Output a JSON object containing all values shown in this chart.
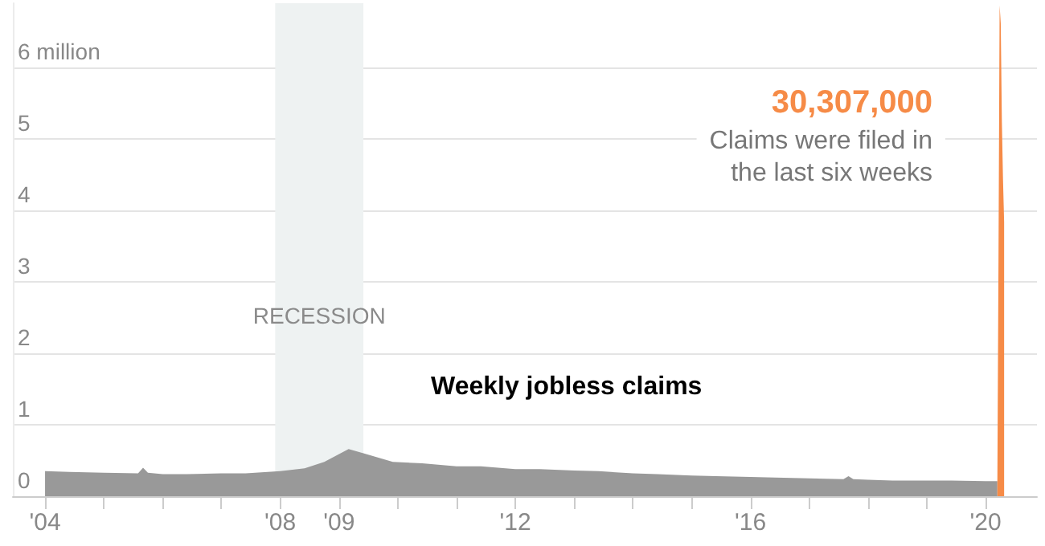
{
  "chart_data": {
    "type": "area",
    "annotations": [
      "30,307,000",
      "Claims were filed in\nthe last six weeks"
    ],
    "xlim": [
      "2003-06-15",
      "2020-11-15"
    ],
    "xticks": [
      {
        "value": "2004",
        "label": "'04"
      },
      {
        "value": "2005",
        "label": null
      },
      {
        "value": "2006",
        "label": null
      },
      {
        "value": "2007",
        "label": null
      },
      {
        "value": "2008",
        "label": "'08"
      },
      {
        "value": "2009",
        "label": "'09"
      },
      {
        "value": "2010",
        "label": null
      },
      {
        "value": "2011",
        "label": null
      },
      {
        "value": "2012",
        "label": "'12"
      },
      {
        "value": "2013",
        "label": null
      },
      {
        "value": "2014",
        "label": null
      },
      {
        "value": "2015",
        "label": null
      },
      {
        "value": "2016",
        "label": "'16"
      },
      {
        "value": "2017",
        "label": null
      },
      {
        "value": "2018",
        "label": null
      },
      {
        "value": "2019",
        "label": null
      },
      {
        "value": "2020",
        "label": "'20"
      }
    ],
    "ylim": [
      0,
      6.9
    ],
    "yticks": [
      0,
      1,
      2,
      3,
      4,
      5,
      {
        "value": 6,
        "label": "6 million"
      }
    ],
    "grid": "y",
    "legend": false,
    "marker": "none",
    "bands": [
      {
        "axis": "x",
        "from": "2007-12",
        "to": "2009-06",
        "label": "RECESSION",
        "color": "#eef2f2"
      }
    ],
    "series": [
      {
        "name": "Weekly jobless claims",
        "color": "#999999",
        "x": [
          "2004-01",
          "2004-06",
          "2005-01",
          "2005-08",
          "2005-09",
          "2005-10",
          "2006-01",
          "2006-06",
          "2007-01",
          "2007-06",
          "2008-01",
          "2008-06",
          "2008-10",
          "2009-01",
          "2009-03",
          "2009-06",
          "2009-12",
          "2010-06",
          "2011-01",
          "2011-06",
          "2012-01",
          "2012-06",
          "2013-01",
          "2013-06",
          "2014-01",
          "2014-06",
          "2015-01",
          "2015-06",
          "2016-01",
          "2016-06",
          "2017-01",
          "2017-08",
          "2017-09",
          "2017-10",
          "2018-01",
          "2018-06",
          "2019-01",
          "2019-06",
          "2020-01",
          "2020-03-14"
        ],
        "values": [
          0.35,
          0.34,
          0.33,
          0.32,
          0.4,
          0.33,
          0.31,
          0.31,
          0.32,
          0.32,
          0.35,
          0.39,
          0.48,
          0.59,
          0.66,
          0.6,
          0.48,
          0.46,
          0.42,
          0.42,
          0.38,
          0.38,
          0.36,
          0.35,
          0.32,
          0.31,
          0.29,
          0.28,
          0.27,
          0.26,
          0.25,
          0.24,
          0.28,
          0.24,
          0.23,
          0.22,
          0.22,
          0.22,
          0.21,
          0.21
        ]
      },
      {
        "color": "#f68b47",
        "x": [
          "2020-03-14",
          "2020-03-21",
          "2020-03-28",
          "2020-04-04",
          "2020-04-11",
          "2020-04-18",
          "2020-04-25"
        ],
        "values": [
          0.21,
          3.31,
          6.87,
          6.62,
          5.24,
          4.44,
          3.84
        ]
      }
    ]
  }
}
